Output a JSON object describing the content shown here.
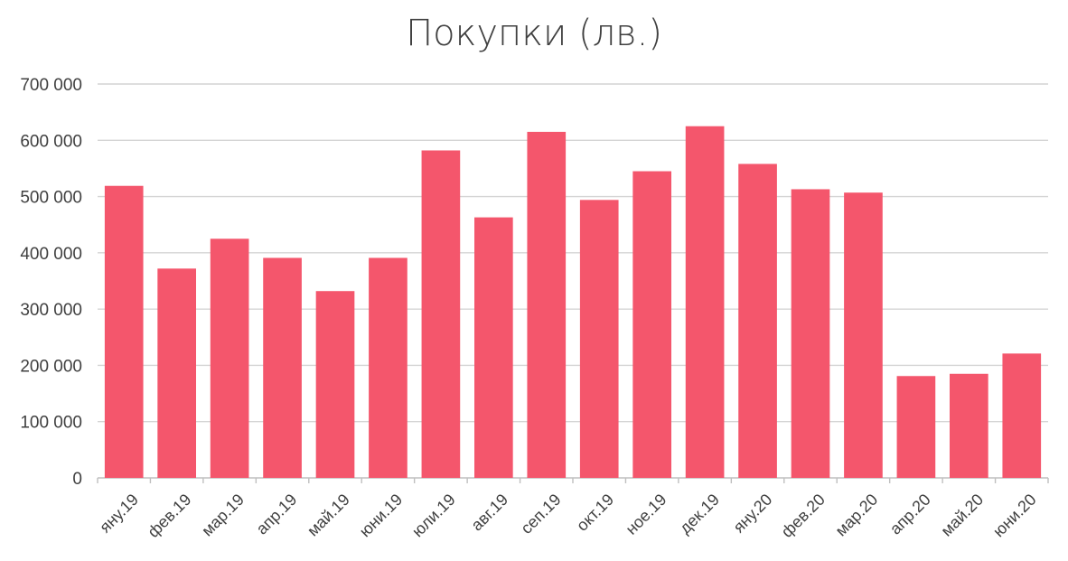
{
  "chart_data": {
    "type": "bar",
    "title": "Покупки (лв.)",
    "categories": [
      "яну.19",
      "фев.19",
      "мар.19",
      "апр.19",
      "май.19",
      "юни.19",
      "юли.19",
      "авг.19",
      "сеп.19",
      "окт.19",
      "ное.19",
      "дек.19",
      "яну.20",
      "фев.20",
      "мар.20",
      "апр.20",
      "май.20",
      "юни.20"
    ],
    "values": [
      519000,
      372000,
      425000,
      391000,
      332000,
      391000,
      582000,
      463000,
      615000,
      494000,
      545000,
      625000,
      558000,
      513000,
      507000,
      181000,
      185000,
      221000
    ],
    "ylim": [
      0,
      700000
    ],
    "yticks": [
      0,
      100000,
      200000,
      300000,
      400000,
      500000,
      600000,
      700000
    ],
    "ytick_labels": [
      "0",
      "100 000",
      "200 000",
      "300 000",
      "400 000",
      "500 000",
      "600 000",
      "700 000"
    ],
    "grid": true,
    "bar_color": "#f4566c",
    "xlabel": "",
    "ylabel": ""
  }
}
